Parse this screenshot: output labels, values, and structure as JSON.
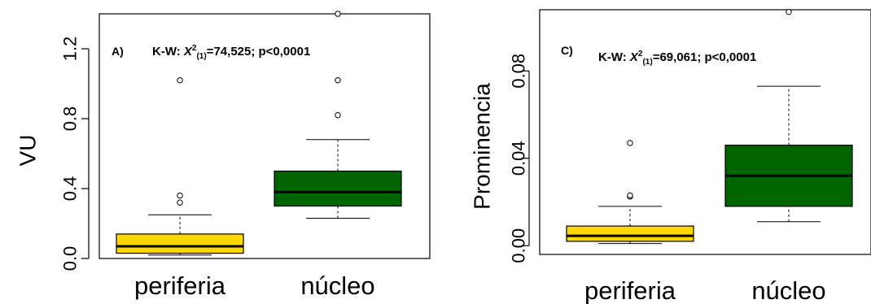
{
  "chart_data": [
    {
      "type": "box",
      "panel_label": "A)",
      "annotation": {
        "prefix": "K-W: ",
        "stat": "X",
        "sup": "2",
        "sub": "(1)",
        "rest": "=74,525; p<0,0001"
      },
      "ylabel": "VU",
      "xlabel": "",
      "categories": [
        "periferia",
        "núcleo"
      ],
      "ylim": [
        0,
        1.4
      ],
      "yticks": [
        0.0,
        0.4,
        0.8,
        1.2
      ],
      "ytick_labels": [
        "0.0",
        "0.4",
        "0.8",
        "1.2"
      ],
      "colors": [
        "#ffd700",
        "#006400"
      ],
      "boxes": [
        {
          "category": "periferia",
          "whisker_low": 0.02,
          "q1": 0.03,
          "median": 0.07,
          "q3": 0.14,
          "whisker_high": 0.25,
          "outliers": [
            0.32,
            0.36,
            1.02
          ]
        },
        {
          "category": "núcleo",
          "whisker_low": 0.23,
          "q1": 0.3,
          "median": 0.38,
          "q3": 0.5,
          "whisker_high": 0.68,
          "outliers": [
            0.82,
            1.02,
            1.4
          ]
        }
      ]
    },
    {
      "type": "box",
      "panel_label": "C)",
      "annotation": {
        "prefix": "K-W: ",
        "stat": "X",
        "sup": "2",
        "sub": "(1)",
        "rest": "=69,061; p<0,0001"
      },
      "ylabel": "Prominencia",
      "xlabel": "",
      "categories": [
        "periferia",
        "núcleo"
      ],
      "ylim": [
        -0.004,
        0.108
      ],
      "yticks": [
        0.0,
        0.04,
        0.08
      ],
      "ytick_labels": [
        "0.00",
        "0.04",
        "0.08"
      ],
      "colors": [
        "#ffd700",
        "#006400"
      ],
      "boxes": [
        {
          "category": "periferia",
          "whisker_low": 0.001,
          "q1": 0.002,
          "median": 0.0045,
          "q3": 0.009,
          "whisker_high": 0.018,
          "outliers": [
            0.0225,
            0.023,
            0.047
          ]
        },
        {
          "category": "núcleo",
          "whisker_low": 0.011,
          "q1": 0.018,
          "median": 0.032,
          "q3": 0.046,
          "whisker_high": 0.073,
          "outliers": [
            0.107
          ]
        }
      ]
    }
  ]
}
